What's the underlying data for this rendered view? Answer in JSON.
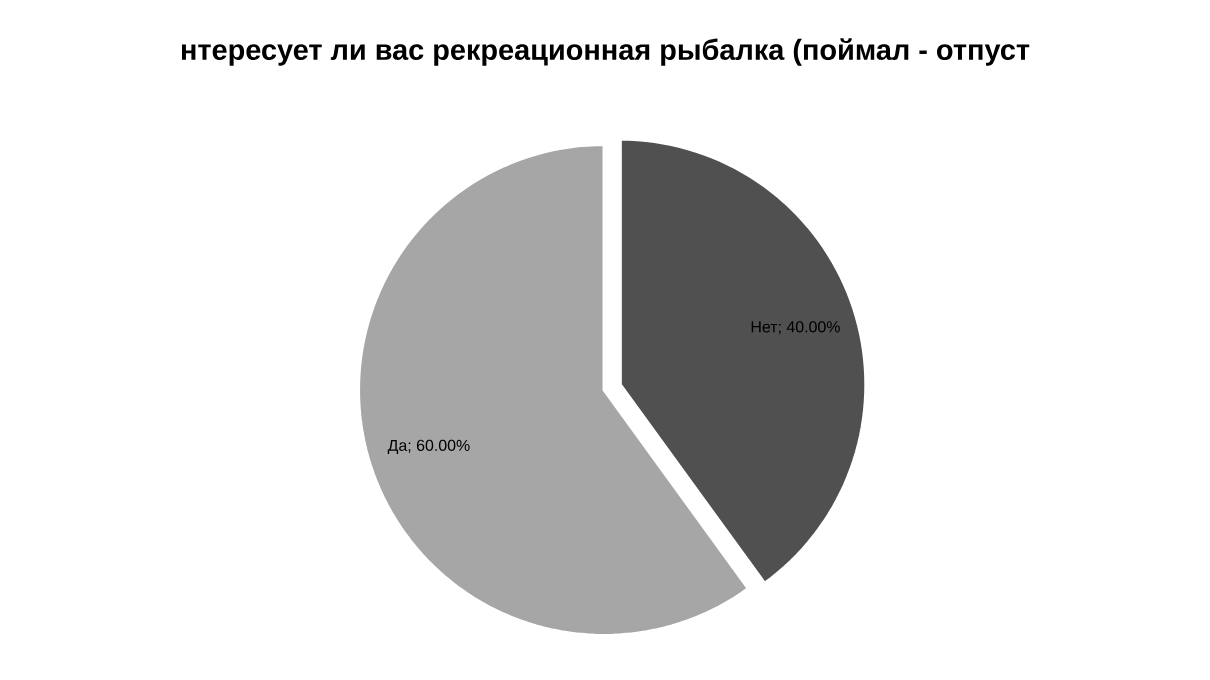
{
  "chart_data": {
    "type": "pie",
    "title": "нтересует ли вас рекреационная рыбалка (поймал - отпуст",
    "categories": [
      "Нет",
      "Да"
    ],
    "values": [
      40,
      60
    ],
    "value_labels": [
      "; 40.00%",
      "; 60.00%"
    ],
    "colors": [
      "#505050",
      "#a6a6a6"
    ]
  }
}
